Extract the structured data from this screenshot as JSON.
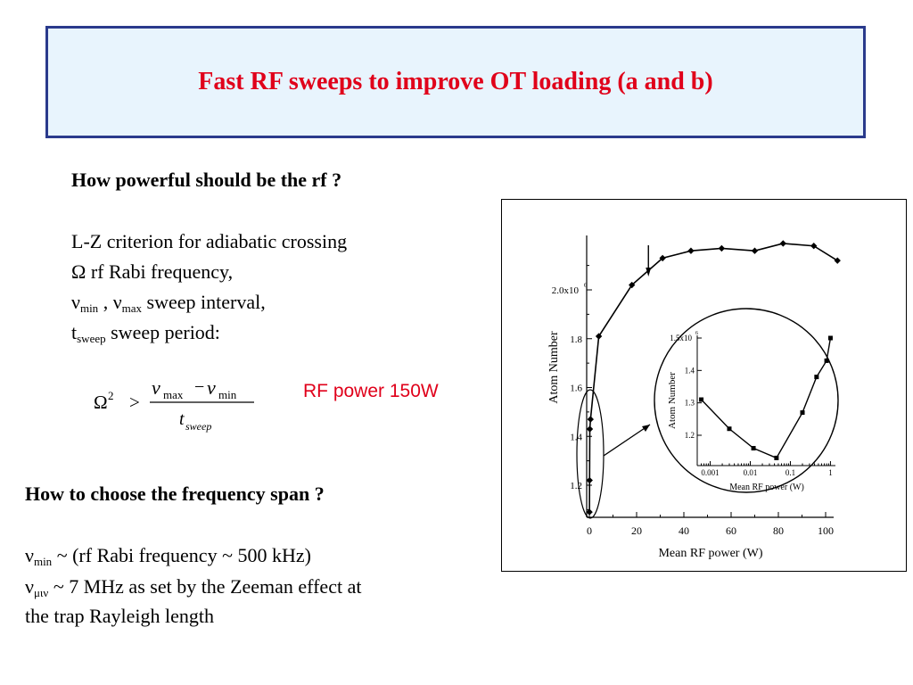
{
  "title": "Fast RF sweeps to improve OT loading (a and b)",
  "left_text": {
    "q1": "How powerful should be the rf ?",
    "lz": "L-Z criterion for adiabatic crossing",
    "omega_line": "Ω rf Rabi frequency,",
    "nu": "ν",
    "sub_min": "min",
    "sub_max": "max",
    "comma_sep": " , ",
    "sweep_interval": " sweep interval,",
    "t": "t",
    "sub_sweep": "sweep",
    "sweep_period": " sweep period:"
  },
  "formula": {
    "lhs": "Ω",
    "sup": "2",
    "gt": ">",
    "nu": "ν",
    "sub_max": "max",
    "minus": "−",
    "sub_min": "min",
    "den_t": "t",
    "den_sub": "sweep"
  },
  "rf_power_label": "RF power 150W",
  "q2": "How to choose the frequency span ?",
  "bottom_text": {
    "nu": "ν",
    "sub_min": "min",
    "line1": " ~ (rf Rabi frequency ~ 500 kHz)",
    "sub_greek": "μιν",
    "line2": "  ~ 7 MHz as set by the Zeeman effect at",
    "line3": "the trap Rayleigh length"
  },
  "chart_data": [
    {
      "type": "line",
      "xlabel": "Mean RF power (W)",
      "ylabel": "Atom Number",
      "xlim": [
        0,
        105
      ],
      "ylim": [
        1.08,
        2.2
      ],
      "x_ticks": [
        "0",
        "20",
        "40",
        "60",
        "80",
        "100"
      ],
      "y_ticks": [
        "1.2",
        "1.4",
        "1.6",
        "1.8",
        "2.0x10"
      ],
      "y_tick_exponent": "6",
      "points": [
        {
          "x": 0.05,
          "y": 1.09
        },
        {
          "x": 0.1,
          "y": 1.22
        },
        {
          "x": 0.2,
          "y": 1.43
        },
        {
          "x": 0.5,
          "y": 1.47
        },
        {
          "x": 4,
          "y": 1.81
        },
        {
          "x": 18,
          "y": 2.02
        },
        {
          "x": 31,
          "y": 2.13
        },
        {
          "x": 43,
          "y": 2.16
        },
        {
          "x": 56,
          "y": 2.17
        },
        {
          "x": 70,
          "y": 2.16
        },
        {
          "x": 82,
          "y": 2.19
        },
        {
          "x": 95,
          "y": 2.18
        },
        {
          "x": 105,
          "y": 2.12
        }
      ],
      "arrow_annotation_x": 25
    },
    {
      "type": "line",
      "note": "inset, log x-axis",
      "xlabel": "Mean RF power (W)",
      "ylabel": "Atom Number",
      "x_scale": "log",
      "xlim": [
        0.0005,
        1.2
      ],
      "ylim": [
        1.12,
        1.62
      ],
      "x_ticks": [
        "0.001",
        "0.01",
        "0.1",
        "1"
      ],
      "y_ticks": [
        "1.2",
        "1.3",
        "1.4",
        "1.5x10"
      ],
      "y_tick_exponent": "6",
      "points": [
        {
          "x": 0.0006,
          "y": 1.31
        },
        {
          "x": 0.003,
          "y": 1.22
        },
        {
          "x": 0.012,
          "y": 1.16
        },
        {
          "x": 0.045,
          "y": 1.13
        },
        {
          "x": 0.2,
          "y": 1.27
        },
        {
          "x": 0.45,
          "y": 1.38
        },
        {
          "x": 0.8,
          "y": 1.43
        },
        {
          "x": 1.0,
          "y": 1.5
        }
      ]
    }
  ]
}
